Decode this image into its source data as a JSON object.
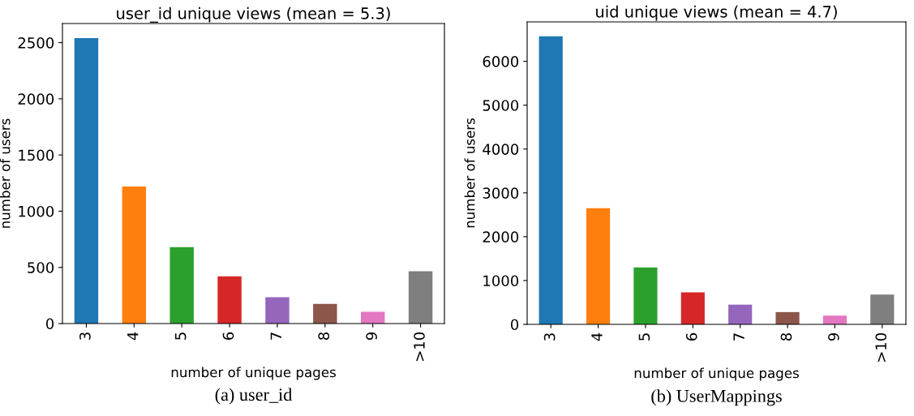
{
  "chart_data": [
    {
      "type": "bar",
      "title": "user_id unique views (mean = 5.3)",
      "xlabel": "number of unique pages",
      "ylabel": "number of users",
      "categories": [
        "3",
        "4",
        "5",
        "6",
        "7",
        "8",
        "9",
        ">10"
      ],
      "values": [
        2540,
        1220,
        680,
        420,
        235,
        175,
        105,
        465
      ],
      "colors": [
        "#1f77b4",
        "#ff7f0e",
        "#2ca02c",
        "#d62728",
        "#9467bd",
        "#8c564b",
        "#e377c2",
        "#7f7f7f"
      ],
      "ylim": [
        0,
        2670
      ],
      "yticks": [
        0,
        500,
        1000,
        1500,
        2000,
        2500
      ],
      "grid": false,
      "annotations": [
        "(a) user_id"
      ]
    },
    {
      "type": "bar",
      "title": "uid unique views (mean = 4.7)",
      "xlabel": "number of unique pages",
      "ylabel": "number of users",
      "categories": [
        "3",
        "4",
        "5",
        "6",
        "7",
        "8",
        "9",
        ">10"
      ],
      "values": [
        6570,
        2650,
        1300,
        730,
        450,
        280,
        200,
        680
      ],
      "colors": [
        "#1f77b4",
        "#ff7f0e",
        "#2ca02c",
        "#d62728",
        "#9467bd",
        "#8c564b",
        "#e377c2",
        "#7f7f7f"
      ],
      "ylim": [
        0,
        6900
      ],
      "yticks": [
        0,
        1000,
        2000,
        3000,
        4000,
        5000,
        6000
      ],
      "grid": false,
      "annotations": [
        "(b) UserMappings"
      ]
    }
  ]
}
